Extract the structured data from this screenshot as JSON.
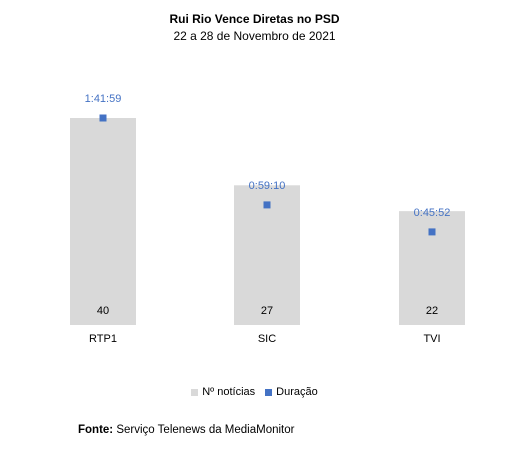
{
  "chart_data": {
    "type": "bar",
    "title": "Rui Rio Vence Diretas no PSD",
    "subtitle": "22 a 28 de Novembro de 2021",
    "categories": [
      "RTP1",
      "SIC",
      "TVI"
    ],
    "series": [
      {
        "name": "Nº notícias",
        "type": "bar",
        "values": [
          40,
          27,
          22
        ],
        "labels": [
          "40",
          "27",
          "22"
        ],
        "color": "#d9d9d9"
      },
      {
        "name": "Duração",
        "type": "marker",
        "values_seconds": [
          6119,
          3550,
          2752
        ],
        "labels": [
          "1:41:59",
          "0:59:10",
          "0:45:52"
        ],
        "color": "#4472c4"
      }
    ],
    "grid": false,
    "legend_position": "bottom"
  },
  "source": {
    "label": "Fonte:",
    "text": "Serviço Telenews da MediaMonitor"
  }
}
